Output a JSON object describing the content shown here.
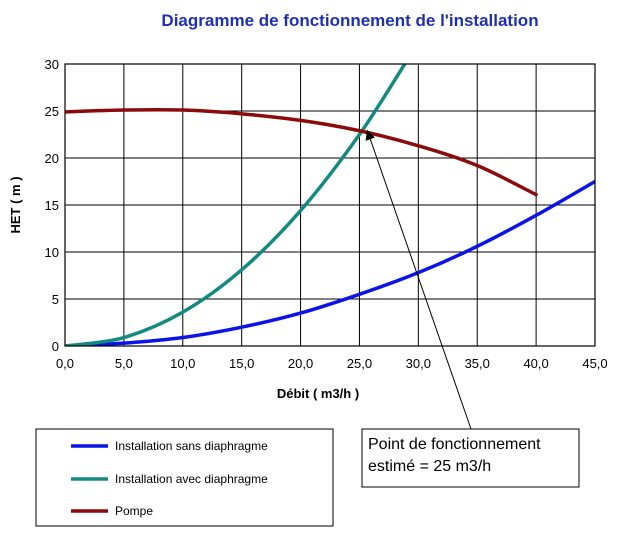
{
  "chart_data": {
    "type": "line",
    "title": "Diagramme de fonctionnement de l'installation",
    "xlabel": "Débit ( m3/h )",
    "ylabel": "HET ( m )",
    "xlim": [
      0,
      45
    ],
    "ylim": [
      0,
      30
    ],
    "x_ticks": [
      0,
      5,
      10,
      15,
      20,
      25,
      30,
      35,
      40,
      45
    ],
    "y_ticks": [
      0,
      5,
      10,
      15,
      20,
      25,
      30
    ],
    "x_tick_labels": [
      "0,0",
      "5,0",
      "10,0",
      "15,0",
      "20,0",
      "25,0",
      "30,0",
      "35,0",
      "40,0",
      "45,0"
    ],
    "y_tick_labels": [
      "0",
      "5",
      "10",
      "15",
      "20",
      "25",
      "30"
    ],
    "grid": true,
    "legend_position": "bottom-left",
    "series": [
      {
        "name": "Installation sans diaphragme",
        "color": "#0a14e6",
        "x": [
          0,
          5,
          10,
          15,
          20,
          25,
          30,
          35,
          40,
          45
        ],
        "y": [
          0,
          0.3,
          0.9,
          2.0,
          3.5,
          5.5,
          7.8,
          10.6,
          13.9,
          17.5
        ]
      },
      {
        "name": "Installation avec diaphragme",
        "color": "#138a80",
        "x": [
          0,
          5,
          10,
          15,
          20,
          25,
          29
        ],
        "y": [
          0,
          0.9,
          3.6,
          8.1,
          14.4,
          22.5,
          30.3
        ]
      },
      {
        "name": "Pompe",
        "color": "#8b0a0a",
        "x": [
          0,
          5,
          10,
          15,
          20,
          25,
          30,
          35,
          40
        ],
        "y": [
          24.9,
          25.1,
          25.1,
          24.7,
          24.0,
          22.9,
          21.3,
          19.2,
          16.1
        ]
      }
    ],
    "annotation": {
      "lines": [
        "Point de fonctionnement",
        "estimé = 25 m3/h"
      ],
      "point": [
        25.7,
        22.8
      ]
    }
  }
}
